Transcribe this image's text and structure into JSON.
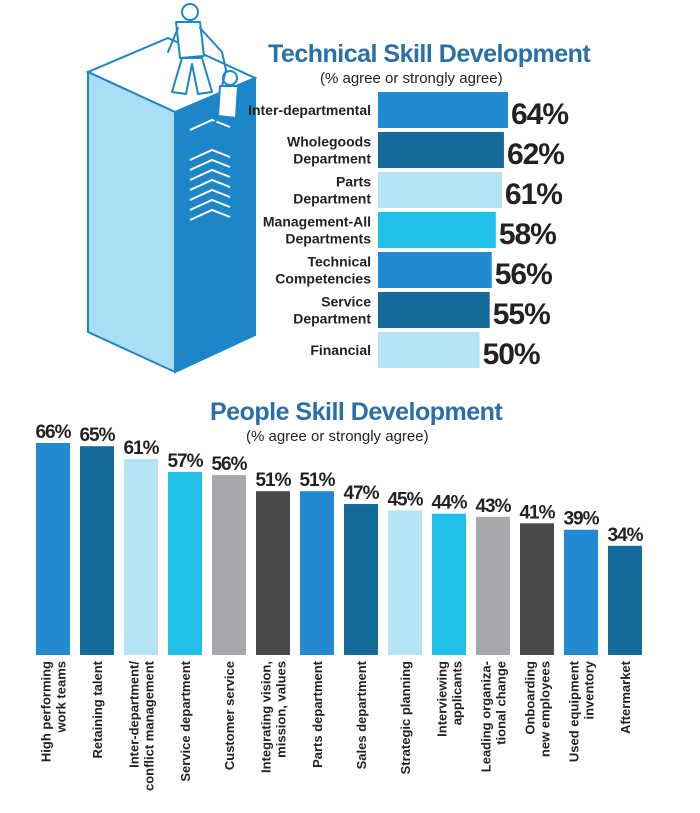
{
  "colors": {
    "title": "#2a6fa6",
    "blue": "#2389d1",
    "navy": "#146b9a",
    "light": "#b3e3f4",
    "cyan": "#21c0e8",
    "gray": "#a7a8ab",
    "charcoal": "#4a4a4c",
    "tower_light": "#a9def4",
    "tower_dark": "#1c86c8",
    "figure_stroke": "#1c86c8"
  },
  "illustration": {
    "name": "tower-climbers",
    "top_color": "#ffffff",
    "front_color": "#a9def4",
    "side_color": "#1c86c8"
  },
  "chart_data": [
    {
      "type": "bar",
      "orientation": "horizontal",
      "title": "Technical Skill Development",
      "subtitle": "(% agree or strongly agree)",
      "categories": [
        [
          "Inter-departmental"
        ],
        [
          "Wholegoods",
          "Department"
        ],
        [
          "Parts",
          "Department"
        ],
        [
          "Management-All",
          "Departments"
        ],
        [
          "Technical",
          "Competencies"
        ],
        [
          "Service",
          "Department"
        ],
        [
          "Financial"
        ]
      ],
      "values": [
        64,
        62,
        61,
        58,
        56,
        55,
        50
      ],
      "value_labels": [
        "64%",
        "62%",
        "61%",
        "58%",
        "56%",
        "55%",
        "50%"
      ],
      "bar_colors": [
        "blue",
        "navy",
        "light",
        "cyan",
        "blue",
        "navy",
        "light"
      ],
      "xlim": [
        0,
        64
      ],
      "grid": false
    },
    {
      "type": "bar",
      "orientation": "vertical",
      "title": "People Skill Development",
      "subtitle": "(% agree or strongly agree)",
      "categories": [
        [
          "High performing",
          "work teams"
        ],
        [
          "Retaining talent"
        ],
        [
          "Inter-department/",
          "conflict management"
        ],
        [
          "Service department"
        ],
        [
          "Customer service"
        ],
        [
          "Integrating vision,",
          "mission, values"
        ],
        [
          "Parts department"
        ],
        [
          "Sales department"
        ],
        [
          "Strategic planning"
        ],
        [
          "Interviewing",
          "applicants"
        ],
        [
          "Leading organiza-",
          "tional change"
        ],
        [
          "Onboarding",
          "new employees"
        ],
        [
          "Used equipment",
          "inventory"
        ],
        [
          "Aftermarket"
        ]
      ],
      "values": [
        66,
        65,
        61,
        57,
        56,
        51,
        51,
        47,
        45,
        44,
        43,
        41,
        39,
        34
      ],
      "value_labels": [
        "66%",
        "65%",
        "61%",
        "57%",
        "56%",
        "51%",
        "51%",
        "47%",
        "45%",
        "44%",
        "43%",
        "41%",
        "39%",
        "34%"
      ],
      "bar_colors": [
        "blue",
        "navy",
        "light",
        "cyan",
        "gray",
        "charcoal",
        "blue",
        "navy",
        "light",
        "cyan",
        "gray",
        "charcoal",
        "blue",
        "navy"
      ],
      "ylim": [
        0,
        66
      ],
      "grid": false
    }
  ]
}
